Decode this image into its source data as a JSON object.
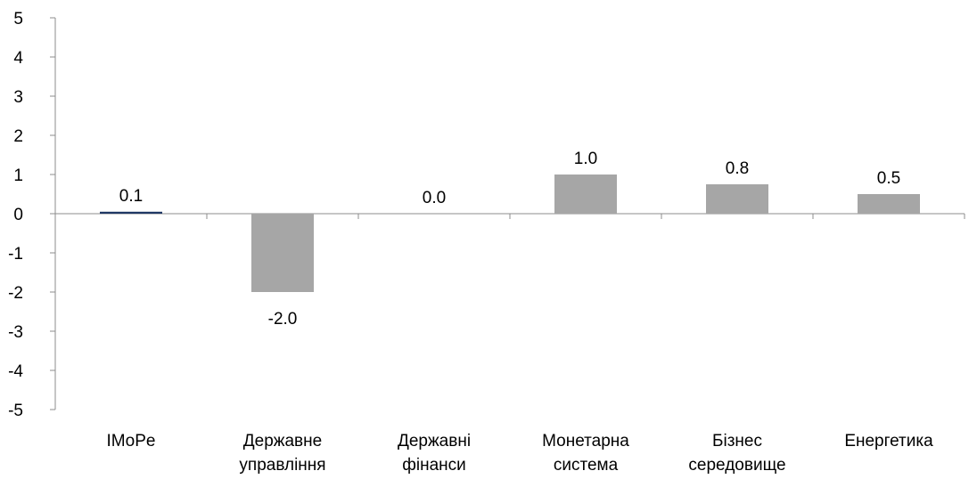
{
  "chart_data": {
    "type": "bar",
    "title": "",
    "xlabel": "",
    "ylabel": "",
    "ylim": [
      -5,
      5
    ],
    "yticks": [
      5,
      4,
      3,
      2,
      1,
      0,
      -1,
      -2,
      -3,
      -4,
      -5
    ],
    "grid": false,
    "legend": "none",
    "categories": [
      [
        "IMoPe"
      ],
      [
        "Державне",
        "управління"
      ],
      [
        "Державні",
        "фінанси"
      ],
      [
        "Монетарна",
        "система"
      ],
      [
        "Бізнес",
        "середовище"
      ],
      [
        "Енергетика"
      ]
    ],
    "values": [
      0.05,
      -2.0,
      0.0,
      1.0,
      0.75,
      0.5
    ],
    "data_labels": [
      "0.1",
      "-2.0",
      "0.0",
      "1.0",
      "0.8",
      "0.5"
    ],
    "bar_colors": [
      "#1f3864",
      "#a6a6a6",
      "#a6a6a6",
      "#a6a6a6",
      "#a6a6a6",
      "#a6a6a6"
    ],
    "axis_color": "#8c8c8c"
  }
}
